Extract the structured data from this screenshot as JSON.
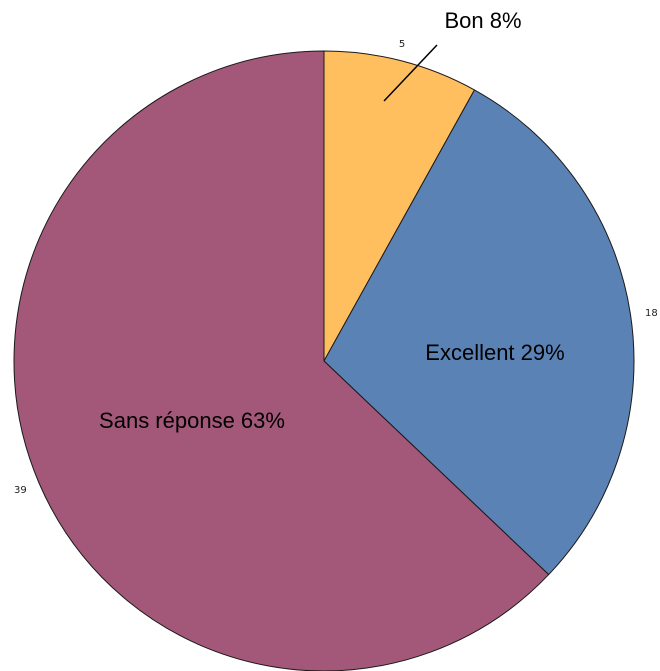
{
  "chart_data": {
    "type": "pie",
    "title": "",
    "slices": [
      {
        "label": "Bon",
        "value": 5,
        "percent_label": "Bon 8%",
        "count_label": "5",
        "color": "#FFBF5F"
      },
      {
        "label": "Excellent",
        "value": 18,
        "percent_label": "Excellent 29%",
        "count_label": "18",
        "color": "#5B82B5"
      },
      {
        "label": "Sans réponse",
        "value": 39,
        "percent_label": "Sans réponse 63%",
        "count_label": "39",
        "color": "#A35879"
      }
    ],
    "start_angle": "12 o'clock",
    "direction": "clockwise",
    "legend": "none"
  }
}
